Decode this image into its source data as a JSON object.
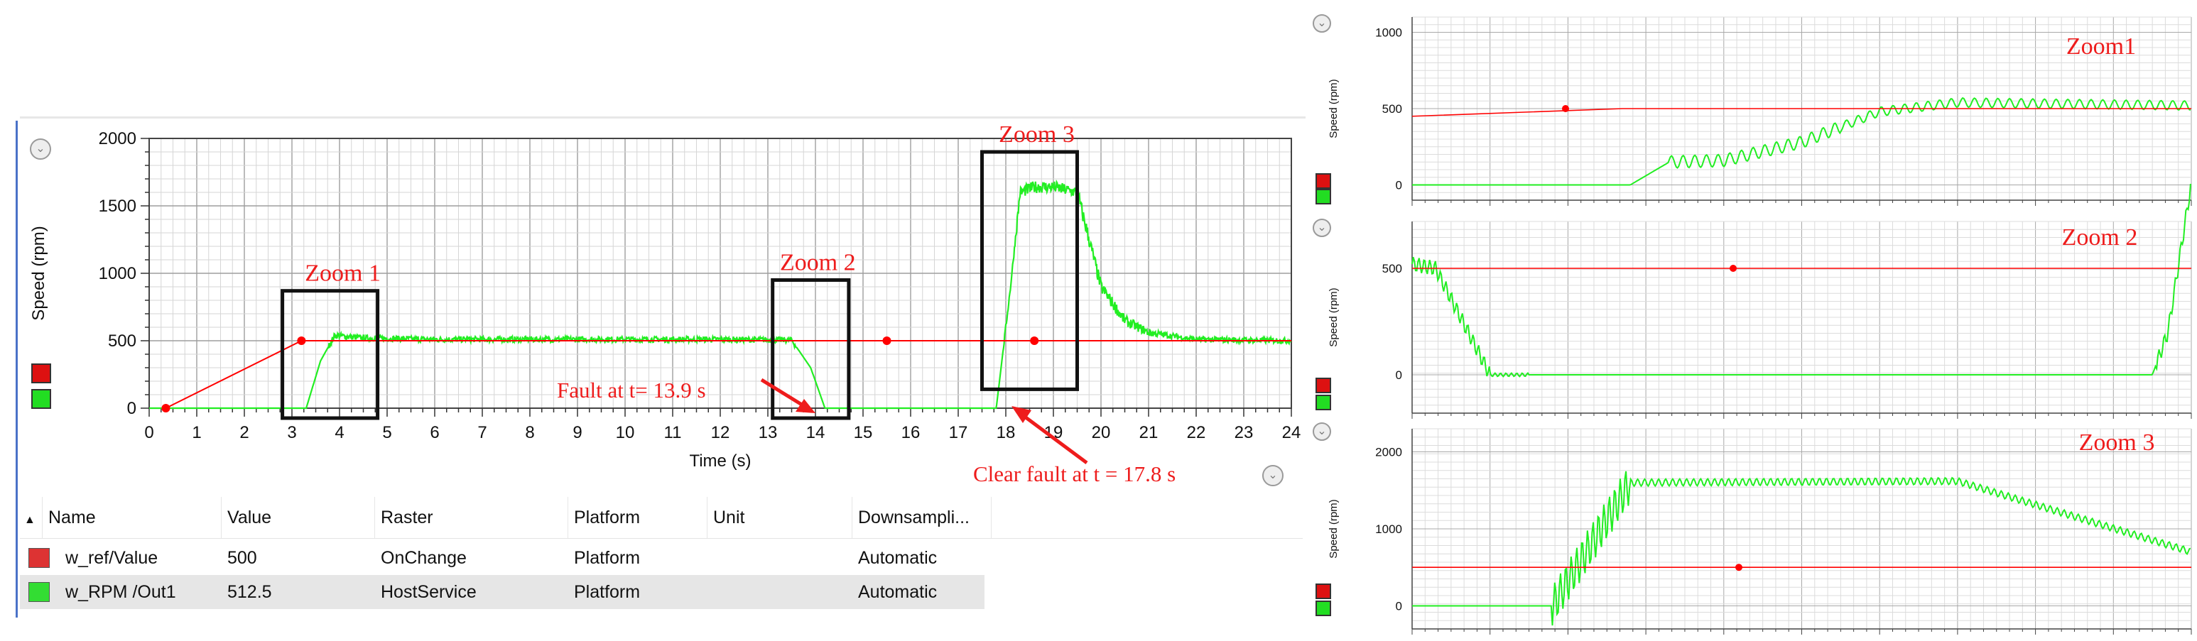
{
  "colors": {
    "ref": "#ff0000",
    "rpm": "#22ee22",
    "legend_red": "#dd1111",
    "legend_green": "#22dd22",
    "annotation": "#ee1c1c",
    "grid": "#b0b0b0"
  },
  "icons": {
    "collapse": "chevron-down-circle-icon",
    "sort": "sort-ascending-icon"
  },
  "main_chart": {
    "x_ticks": [
      "0",
      "1",
      "2",
      "3",
      "4",
      "5",
      "6",
      "7",
      "8",
      "9",
      "10",
      "11",
      "12",
      "13",
      "14",
      "15",
      "16",
      "17",
      "18",
      "19",
      "20",
      "21",
      "22",
      "23",
      "24"
    ],
    "y_ticks": [
      "0",
      "500",
      "1000",
      "1500",
      "2000"
    ],
    "annotations": {
      "zoom1": "Zoom 1",
      "zoom2": "Zoom 2",
      "zoom3": "Zoom 3",
      "fault": "Fault at t= 13.9 s",
      "clear": "Clear fault at t = 17.8 s"
    }
  },
  "zoom_panels": [
    {
      "label": "Zoom1",
      "y_ticks": [
        "0",
        "500",
        "1000"
      ]
    },
    {
      "label": "Zoom 2",
      "y_ticks": [
        "0",
        "500"
      ]
    },
    {
      "label": "Zoom 3",
      "y_ticks": [
        "0",
        "1000",
        "2000"
      ]
    }
  ],
  "chart_data": [
    {
      "type": "line",
      "title": "",
      "xlabel": "Time (s)",
      "ylabel": "Speed (rpm)",
      "xlim": [
        0,
        24
      ],
      "ylim": [
        0,
        2000
      ],
      "grid": true,
      "legend": "left",
      "series": [
        {
          "name": "w_ref/Value",
          "color": "#ff0000",
          "x": [
            0.35,
            3.2,
            15.5,
            18.6,
            24
          ],
          "y": [
            0,
            500,
            500,
            500,
            500
          ]
        },
        {
          "name": "w_RPM /Out1",
          "color": "#22ee22",
          "x": [
            0,
            3.3,
            3.6,
            3.9,
            4.5,
            6,
            8,
            10,
            12,
            13.5,
            13.9,
            14.2,
            17.8,
            18.1,
            18.3,
            18.6,
            19.0,
            19.5,
            20.0,
            20.5,
            21.0,
            22.0,
            23.0,
            24.0
          ],
          "y": [
            0,
            0,
            350,
            540,
            520,
            510,
            510,
            510,
            510,
            505,
            300,
            0,
            0,
            900,
            1600,
            1640,
            1640,
            1600,
            900,
            650,
            560,
            510,
            505,
            500
          ]
        }
      ]
    },
    {
      "type": "line",
      "title": "Zoom1",
      "ylabel": "Speed (rpm)",
      "ylim": [
        -100,
        1100
      ],
      "grid": true,
      "series": [
        {
          "name": "w_ref/Value",
          "x": [
            0,
            0.27,
            1
          ],
          "y": [
            450,
            500,
            500
          ]
        },
        {
          "name": "w_RPM /Out1",
          "x": [
            0,
            0.28,
            0.33,
            0.4,
            0.5,
            0.6,
            0.7,
            1
          ],
          "y": [
            0,
            0,
            150,
            160,
            280,
            480,
            540,
            520
          ]
        }
      ]
    },
    {
      "type": "line",
      "title": "Zoom 2",
      "ylabel": "Speed (rpm)",
      "ylim": [
        -180,
        720
      ],
      "grid": true,
      "series": [
        {
          "name": "w_ref/Value",
          "x": [
            0,
            1
          ],
          "y": [
            500,
            500
          ]
        },
        {
          "name": "w_RPM /Out1",
          "x": [
            0,
            0.03,
            0.1,
            0.95,
            0.97,
            1
          ],
          "y": [
            520,
            500,
            0,
            0,
            200,
            900
          ]
        }
      ]
    },
    {
      "type": "line",
      "title": "Zoom 3",
      "ylabel": "Speed (rpm)",
      "ylim": [
        -300,
        2300
      ],
      "grid": true,
      "series": [
        {
          "name": "w_ref/Value",
          "x": [
            0,
            1
          ],
          "y": [
            500,
            500
          ]
        },
        {
          "name": "w_RPM /Out1",
          "x": [
            0,
            0.18,
            0.28,
            0.7,
            1
          ],
          "y": [
            0,
            0,
            1600,
            1620,
            700
          ]
        }
      ]
    }
  ],
  "table": {
    "headers": [
      "Name",
      "Value",
      "Raster",
      "Platform",
      "Unit",
      "Downsampli..."
    ],
    "rows": [
      {
        "name": "w_ref/Value",
        "value": "500",
        "raster": "OnChange",
        "platform": "Platform",
        "unit": "",
        "downsampling": "Automatic",
        "color": "#dd3333"
      },
      {
        "name": "w_RPM /Out1",
        "value": "512.5",
        "raster": "HostService",
        "platform": "Platform",
        "unit": "",
        "downsampling": "Automatic",
        "color": "#33dd33"
      }
    ]
  }
}
